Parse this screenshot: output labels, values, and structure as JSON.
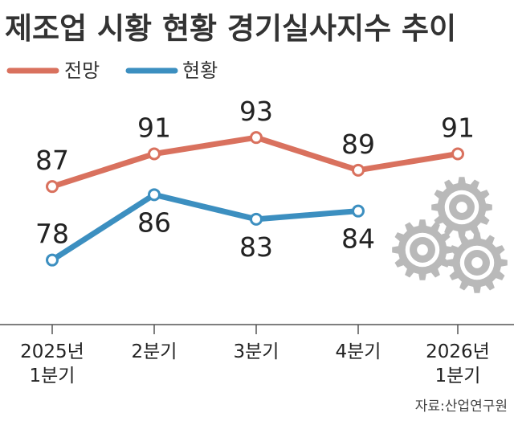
{
  "chart_data": {
    "type": "line",
    "title": "제조업 시황 현황 경기실사지수 추이",
    "categories": [
      [
        "2025년",
        "1분기"
      ],
      [
        "2분기"
      ],
      [
        "3분기"
      ],
      [
        "4분기"
      ],
      [
        "2026년",
        "1분기"
      ]
    ],
    "series": [
      {
        "name": "전망",
        "color": "#d9715e",
        "values": [
          87,
          91,
          93,
          89,
          91
        ]
      },
      {
        "name": "현황",
        "color": "#3c8fc0",
        "values": [
          78,
          86,
          83,
          84,
          null
        ]
      }
    ],
    "ylim": [
      70,
      100
    ],
    "grid": false,
    "legend_position": "top-left",
    "source": "자료:산업연구원",
    "decoration_icon": "gears-icon"
  }
}
